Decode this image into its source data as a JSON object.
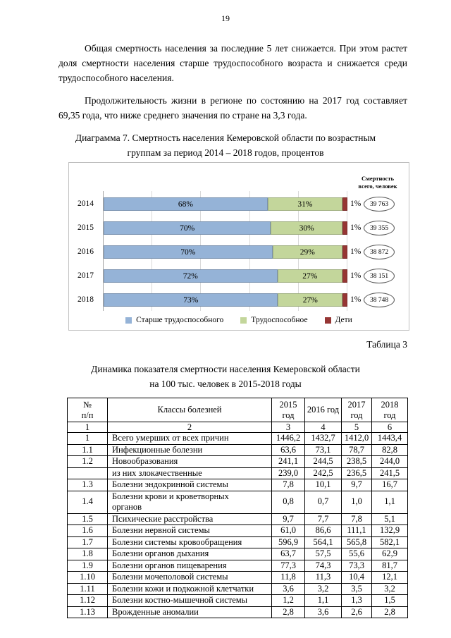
{
  "page": {
    "number": "19"
  },
  "paragraphs": [
    "Общая смертность населения за последние 5 лет снижается. При этом растет доля смертности населения старше трудоспособного возраста и снижается среди трудоспособного населения.",
    "Продолжительность жизни в регионе по состоянию на 2017 год составляет 69,35 года, что ниже среднего значения по стране на 3,3 года."
  ],
  "chart": {
    "caption_lines": [
      "Диаграмма 7. Смертность населения Кемеровской области по возрастным",
      "группам за период 2014 – 2018 годов, процентов"
    ],
    "right_header": "Смертность\nвсего,  человек"
  },
  "chart_data": {
    "type": "bar",
    "orientation": "horizontal",
    "stacked": true,
    "title": "Диаграмма 7. Смертность населения Кемеровской области по возрастным группам за период 2014 – 2018 годов, процентов",
    "categories": [
      "2014",
      "2015",
      "2016",
      "2017",
      "2018"
    ],
    "series": [
      {
        "name": "Старше трудоспособного",
        "color": "#95b3d7",
        "values": [
          68,
          70,
          70,
          72,
          73
        ]
      },
      {
        "name": "Трудоспособное",
        "color": "#c3d69b",
        "values": [
          31,
          30,
          29,
          27,
          27
        ]
      },
      {
        "name": "Дети",
        "color": "#963634",
        "values": [
          1,
          1,
          1,
          1,
          1
        ]
      }
    ],
    "value_suffix": "%",
    "totals_label": "Смертность всего, человек",
    "totals": [
      "39 763",
      "39 355",
      "38 872",
      "38 151",
      "38 748"
    ],
    "xlim": [
      0,
      100
    ],
    "gridline_step_percent": 20,
    "legend_position": "bottom",
    "grid": true
  },
  "table3": {
    "label": "Таблица 3",
    "caption_lines": [
      "Динамика показателя смертности населения Кемеровской области",
      "на 100 тыс. человек в 2015-2018 годы"
    ],
    "headers": [
      "№\nп/п",
      "Классы болезней",
      "2015\nгод",
      "2016 год",
      "2017\nгод",
      "2018\nгод"
    ],
    "numbering": [
      "1",
      "2",
      "3",
      "4",
      "5",
      "6"
    ],
    "rows": [
      {
        "num": "1",
        "name": "Всего умерших от всех причин",
        "values": [
          "1446,2",
          "1432,7",
          "1412,0",
          "1443,4"
        ]
      },
      {
        "num": "1.1",
        "name": "Инфекционные болезни",
        "values": [
          "63,6",
          "73,1",
          "78,7",
          "82,8"
        ]
      },
      {
        "num": "1.2",
        "name": "Новообразования",
        "values": [
          "241,1",
          "244,5",
          "238,5",
          "244,0"
        ]
      },
      {
        "num": "",
        "name": "из них злокачественные",
        "values": [
          "239,0",
          "242,5",
          "236,5",
          "241,5"
        ]
      },
      {
        "num": "1.3",
        "name": "Болезни эндокринной системы",
        "values": [
          "7,8",
          "10,1",
          "9,7",
          "16,7"
        ]
      },
      {
        "num": "1.4",
        "name": "Болезни крови и кроветворных\nорганов",
        "values": [
          "0,8",
          "0,7",
          "1,0",
          "1,1"
        ]
      },
      {
        "num": "1.5",
        "name": "Психические расстройства",
        "values": [
          "9,7",
          "7,7",
          "7,8",
          "5,1"
        ]
      },
      {
        "num": "1.6",
        "name": "Болезни нервной системы",
        "values": [
          "61,0",
          "86,6",
          "111,1",
          "132,9"
        ]
      },
      {
        "num": "1.7",
        "name": "Болезни системы кровообращения",
        "values": [
          "596,9",
          "564,1",
          "565,8",
          "582,1"
        ]
      },
      {
        "num": "1.8",
        "name": "Болезни органов дыхания",
        "values": [
          "63,7",
          "57,5",
          "55,6",
          "62,9"
        ]
      },
      {
        "num": "1.9",
        "name": "Болезни органов пищеварения",
        "values": [
          "77,3",
          "74,3",
          "73,3",
          "81,7"
        ]
      },
      {
        "num": "1.10",
        "name": "Болезни мочеполовой системы",
        "values": [
          "11,8",
          "11,3",
          "10,4",
          "12,1"
        ]
      },
      {
        "num": "1.11",
        "name": "Болезни кожи и подкожной клетчатки",
        "values": [
          "3,6",
          "3,2",
          "3,5",
          "3,2"
        ]
      },
      {
        "num": "1.12",
        "name": "Болезни костно-мышечной системы",
        "values": [
          "1,2",
          "1,1",
          "1,3",
          "1,5"
        ]
      },
      {
        "num": "1.13",
        "name": "Врожденные аномалии",
        "values": [
          "2,8",
          "3,6",
          "2,6",
          "2,8"
        ]
      }
    ]
  }
}
